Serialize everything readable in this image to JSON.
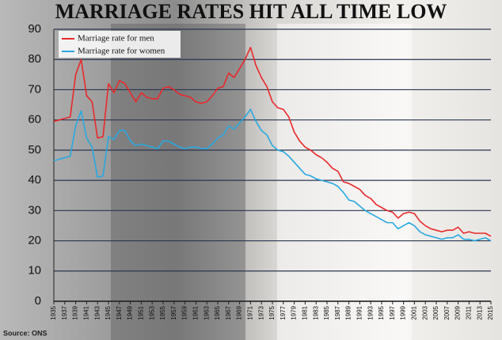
{
  "chart_data": {
    "type": "line",
    "title": "MARRIAGE RATES HIT ALL TIME LOW",
    "source": "Source: ONS",
    "x": [
      1935,
      1936,
      1937,
      1938,
      1939,
      1940,
      1941,
      1942,
      1943,
      1944,
      1945,
      1946,
      1947,
      1948,
      1949,
      1950,
      1951,
      1952,
      1953,
      1954,
      1955,
      1956,
      1957,
      1958,
      1959,
      1960,
      1961,
      1962,
      1963,
      1964,
      1965,
      1966,
      1967,
      1968,
      1969,
      1970,
      1971,
      1972,
      1973,
      1974,
      1975,
      1976,
      1977,
      1978,
      1979,
      1980,
      1981,
      1982,
      1983,
      1984,
      1985,
      1986,
      1987,
      1988,
      1989,
      1990,
      1991,
      1992,
      1993,
      1994,
      1995,
      1996,
      1997,
      1998,
      1999,
      2000,
      2001,
      2002,
      2003,
      2004,
      2005,
      2006,
      2007,
      2008,
      2009,
      2010,
      2011,
      2012,
      2013,
      2014,
      2015
    ],
    "series": [
      {
        "name": "Marriage rate for men",
        "color": "#e8292b",
        "values": [
          59.5,
          60,
          60.5,
          61,
          75,
          80,
          68,
          66,
          54,
          54.5,
          72,
          69,
          73,
          72,
          69,
          66,
          69,
          67.5,
          67,
          67,
          70.5,
          71,
          70,
          68.5,
          68,
          67.5,
          66,
          65.5,
          66,
          68,
          70.5,
          71,
          75.5,
          74,
          77,
          80,
          84,
          78,
          74,
          71,
          66,
          64,
          63.5,
          61,
          56,
          53,
          51,
          50,
          48.5,
          47.5,
          46,
          44,
          43,
          39.5,
          39,
          38,
          37,
          35,
          34,
          32,
          31,
          30,
          29.5,
          27.5,
          29,
          29.5,
          29,
          26.5,
          25,
          24,
          23.5,
          23,
          23.5,
          23.5,
          24.5,
          22.5,
          23,
          22.5,
          22.5,
          22.5,
          21.5
        ]
      },
      {
        "name": "Marriage rate for women",
        "color": "#29a8e0",
        "values": [
          46.5,
          47,
          47.5,
          48,
          58,
          63,
          54,
          51,
          41,
          41.5,
          54.5,
          53.5,
          56.5,
          56.5,
          53,
          51.5,
          52,
          51.5,
          51,
          50.5,
          53,
          53,
          52,
          51,
          50.5,
          51,
          51,
          50.5,
          50.5,
          52,
          54,
          55,
          58,
          57,
          59,
          61,
          63.5,
          59.5,
          56.5,
          55,
          51.5,
          50,
          49.5,
          48,
          46,
          44,
          42,
          41.5,
          40.5,
          40,
          39.5,
          39,
          38,
          36,
          33.5,
          33,
          31.5,
          30,
          29,
          28,
          27,
          26,
          26,
          24,
          25,
          26,
          25,
          23,
          22,
          21.5,
          21,
          20.5,
          21,
          21,
          22,
          20.5,
          20.5,
          20,
          20.5,
          21,
          20
        ]
      }
    ],
    "xlim": [
      1935,
      2015
    ],
    "xticks": [
      1935,
      1937,
      1939,
      1941,
      1943,
      1945,
      1947,
      1949,
      1951,
      1953,
      1955,
      1957,
      1959,
      1961,
      1963,
      1965,
      1967,
      1969,
      1971,
      1973,
      1975,
      1977,
      1979,
      1981,
      1983,
      1985,
      1987,
      1989,
      1991,
      1993,
      1995,
      1997,
      1999,
      2001,
      2003,
      2005,
      2007,
      2009,
      2011,
      2013,
      2015
    ],
    "ylim": [
      0,
      90
    ],
    "yticks": [
      0,
      10,
      20,
      30,
      40,
      50,
      60,
      70,
      80,
      90
    ],
    "grid": true,
    "legend": "top-left"
  }
}
